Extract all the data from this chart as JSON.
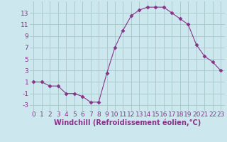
{
  "x": [
    0,
    1,
    2,
    3,
    4,
    5,
    6,
    7,
    8,
    9,
    10,
    11,
    12,
    13,
    14,
    15,
    16,
    17,
    18,
    19,
    20,
    21,
    22,
    23
  ],
  "y": [
    1,
    1,
    0.3,
    0.3,
    -1,
    -1,
    -1.5,
    -2.5,
    -2.5,
    2.5,
    7,
    10,
    12.5,
    13.5,
    14,
    14,
    14,
    13,
    12,
    11,
    7.5,
    5.5,
    4.5,
    3
  ],
  "line_color": "#883388",
  "marker": "D",
  "marker_size": 2.5,
  "bg_color": "#cce8ee",
  "grid_color": "#aacccc",
  "xlabel": "Windchill (Refroidissement éolien,°C)",
  "xlabel_fontsize": 7,
  "tick_fontsize": 6.5,
  "ylim": [
    -4,
    15
  ],
  "xlim": [
    -0.5,
    23.5
  ],
  "yticks": [
    -3,
    -1,
    1,
    3,
    5,
    7,
    9,
    11,
    13
  ],
  "xticks": [
    0,
    1,
    2,
    3,
    4,
    5,
    6,
    7,
    8,
    9,
    10,
    11,
    12,
    13,
    14,
    15,
    16,
    17,
    18,
    19,
    20,
    21,
    22,
    23
  ]
}
